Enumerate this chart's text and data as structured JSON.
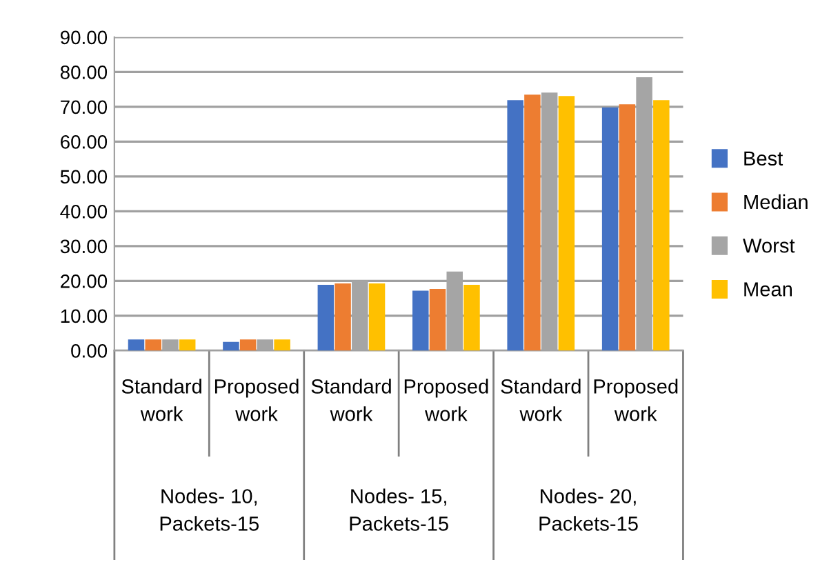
{
  "chart_data": {
    "type": "bar",
    "categories": [
      "Standard\nwork",
      "Proposed\nwork",
      "Standard\nwork",
      "Proposed\nwork",
      "Standard\nwork",
      "Proposed\nwork"
    ],
    "series": [
      {
        "name": "Best",
        "color": "#4472c4",
        "values": [
          3.2,
          2.5,
          18.9,
          17.2,
          71.9,
          69.8
        ]
      },
      {
        "name": "Median",
        "color": "#ed7d31",
        "values": [
          3.2,
          3.2,
          19.3,
          17.7,
          73.5,
          70.7
        ]
      },
      {
        "name": "Worst",
        "color": "#a5a5a5",
        "values": [
          3.2,
          3.2,
          20.2,
          22.7,
          74.1,
          78.5
        ]
      },
      {
        "name": "Mean",
        "color": "#ffc000",
        "values": [
          3.2,
          3.2,
          19.3,
          18.9,
          73.1,
          71.9
        ]
      }
    ],
    "annotations": [
      "Nodes- 10,\nPackets-15",
      "Nodes- 15,\nPackets-15",
      "Nodes- 20,\nPackets-15"
    ],
    "ylim": [
      0,
      90
    ],
    "yticks": [
      {
        "value": 0,
        "label": "0.00"
      },
      {
        "value": 10,
        "label": "10.00"
      },
      {
        "value": 20,
        "label": "20.00"
      },
      {
        "value": 30,
        "label": "30.00"
      },
      {
        "value": 40,
        "label": "40.00"
      },
      {
        "value": 50,
        "label": "50.00"
      },
      {
        "value": 60,
        "label": "60.00"
      },
      {
        "value": 70,
        "label": "70.00"
      },
      {
        "value": 80,
        "label": "80.00"
      },
      {
        "value": 90,
        "label": "90.00"
      }
    ],
    "grid": "y",
    "legend": "right"
  }
}
